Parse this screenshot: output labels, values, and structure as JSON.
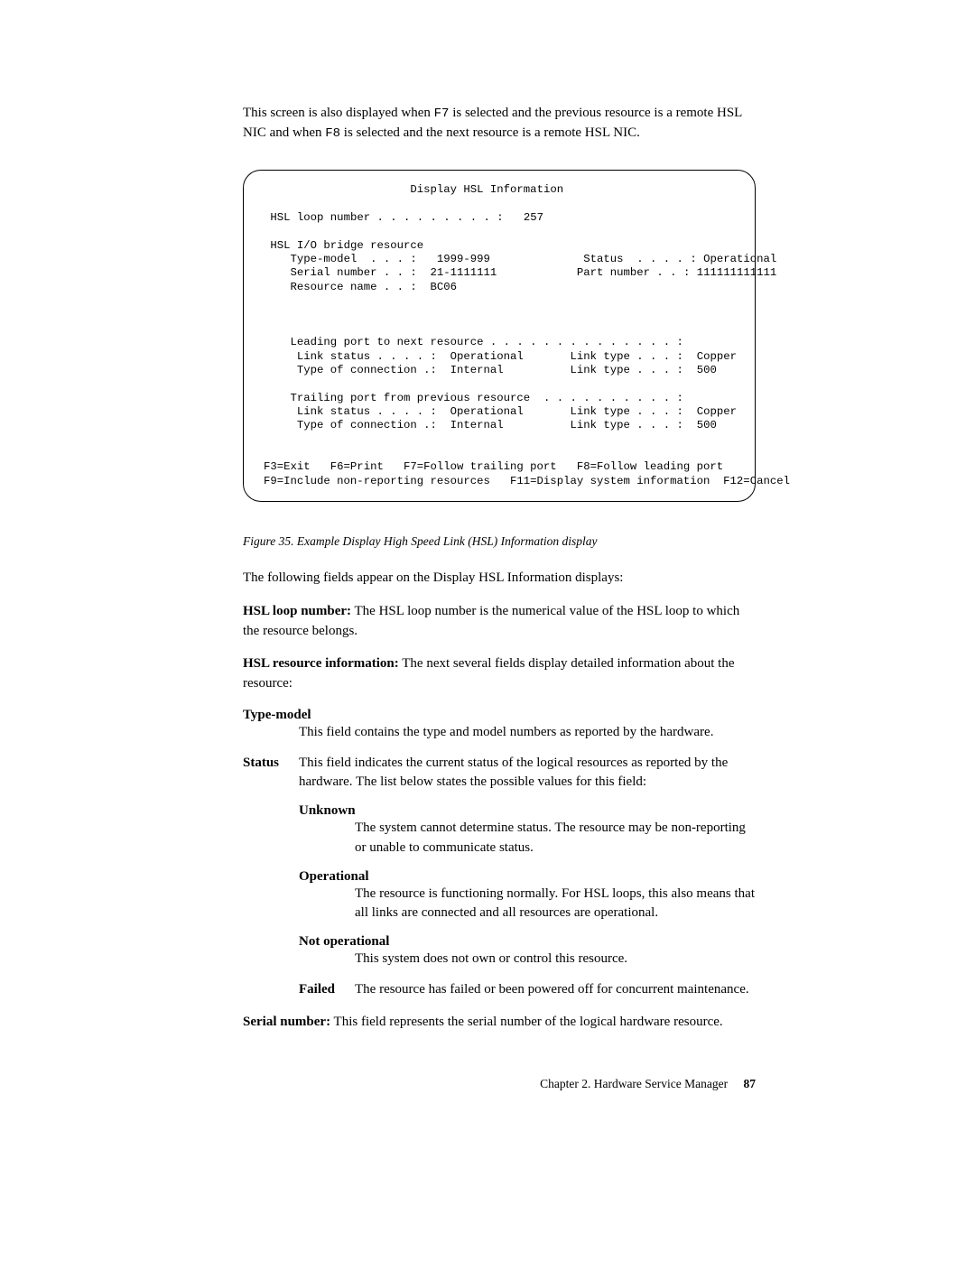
{
  "intro": {
    "part1": "This screen is also displayed when ",
    "key1": "F7",
    "part2": " is selected and the previous resource is a remote HSL NIC and when ",
    "key2": "F8",
    "part3": " is selected and the next resource is a remote HSL NIC."
  },
  "terminal": {
    "title": "Display HSL Information",
    "loop_number_label": "HSL loop number . . . . . . . . . :",
    "loop_number_value": "257",
    "bridge_heading": "HSL I/O bridge resource",
    "type_model_label": "Type-model  . . . :",
    "type_model_value": "1999-999",
    "status_label": "Status  . . . . :",
    "status_value": "Operational",
    "serial_label": "Serial number . . :",
    "serial_value": "21-1111111",
    "part_label": "Part number . . :",
    "part_value": "111111111111",
    "resource_label": "Resource name . . :",
    "resource_value": "BC06",
    "leading_heading": "Leading port to next resource . . . . . . . . . . . . . . :",
    "link_status_label": "Link status . . . . :",
    "link_status_value": "Operational",
    "link_type_label": "Link type . . . :",
    "link_type_value_copper": "Copper",
    "conn_label": "Type of connection .:",
    "conn_value": "Internal",
    "link_type_value_500": "500",
    "trailing_heading": "Trailing port from previous resource  . . . . . . . . . . :",
    "fkeys_line1": "F3=Exit   F6=Print   F7=Follow trailing port   F8=Follow leading port",
    "fkeys_line2": "F9=Include non-reporting resources   F11=Display system information  F12=Cancel"
  },
  "figure_caption": "Figure 35. Example Display High Speed Link (HSL) Information display",
  "para_following": "The following fields appear on the Display HSL Information displays:",
  "hsl_loop_label": "HSL loop number:",
  "hsl_loop_text": "  The HSL loop number is the numerical value of the HSL loop to which the resource belongs.",
  "hsl_resource_label": "HSL resource information:",
  "hsl_resource_text": "  The next several fields display detailed information about the resource:",
  "type_model_term": "Type-model",
  "type_model_def": "This field contains the type and model numbers as reported by the hardware.",
  "status_term": "Status",
  "status_def": "This field indicates the current status of the logical resources as reported by the hardware. The list below states the possible values for this field:",
  "unknown_term": "Unknown",
  "unknown_def": "The system cannot determine status. The resource may be non-reporting or unable to communicate status.",
  "operational_term": "Operational",
  "operational_def": "The resource is functioning normally. For HSL loops, this also means that all links are connected and all resources are operational.",
  "notop_term": "Not operational",
  "notop_def": "This system does not own or control this resource.",
  "failed_term": "Failed",
  "failed_def": "The resource has failed or been powered off for concurrent maintenance.",
  "serial_label_body": "Serial number:",
  "serial_text_body": "  This field represents the serial number of the logical hardware resource.",
  "footer_chapter": "Chapter 2. Hardware Service Manager",
  "footer_page": "87"
}
